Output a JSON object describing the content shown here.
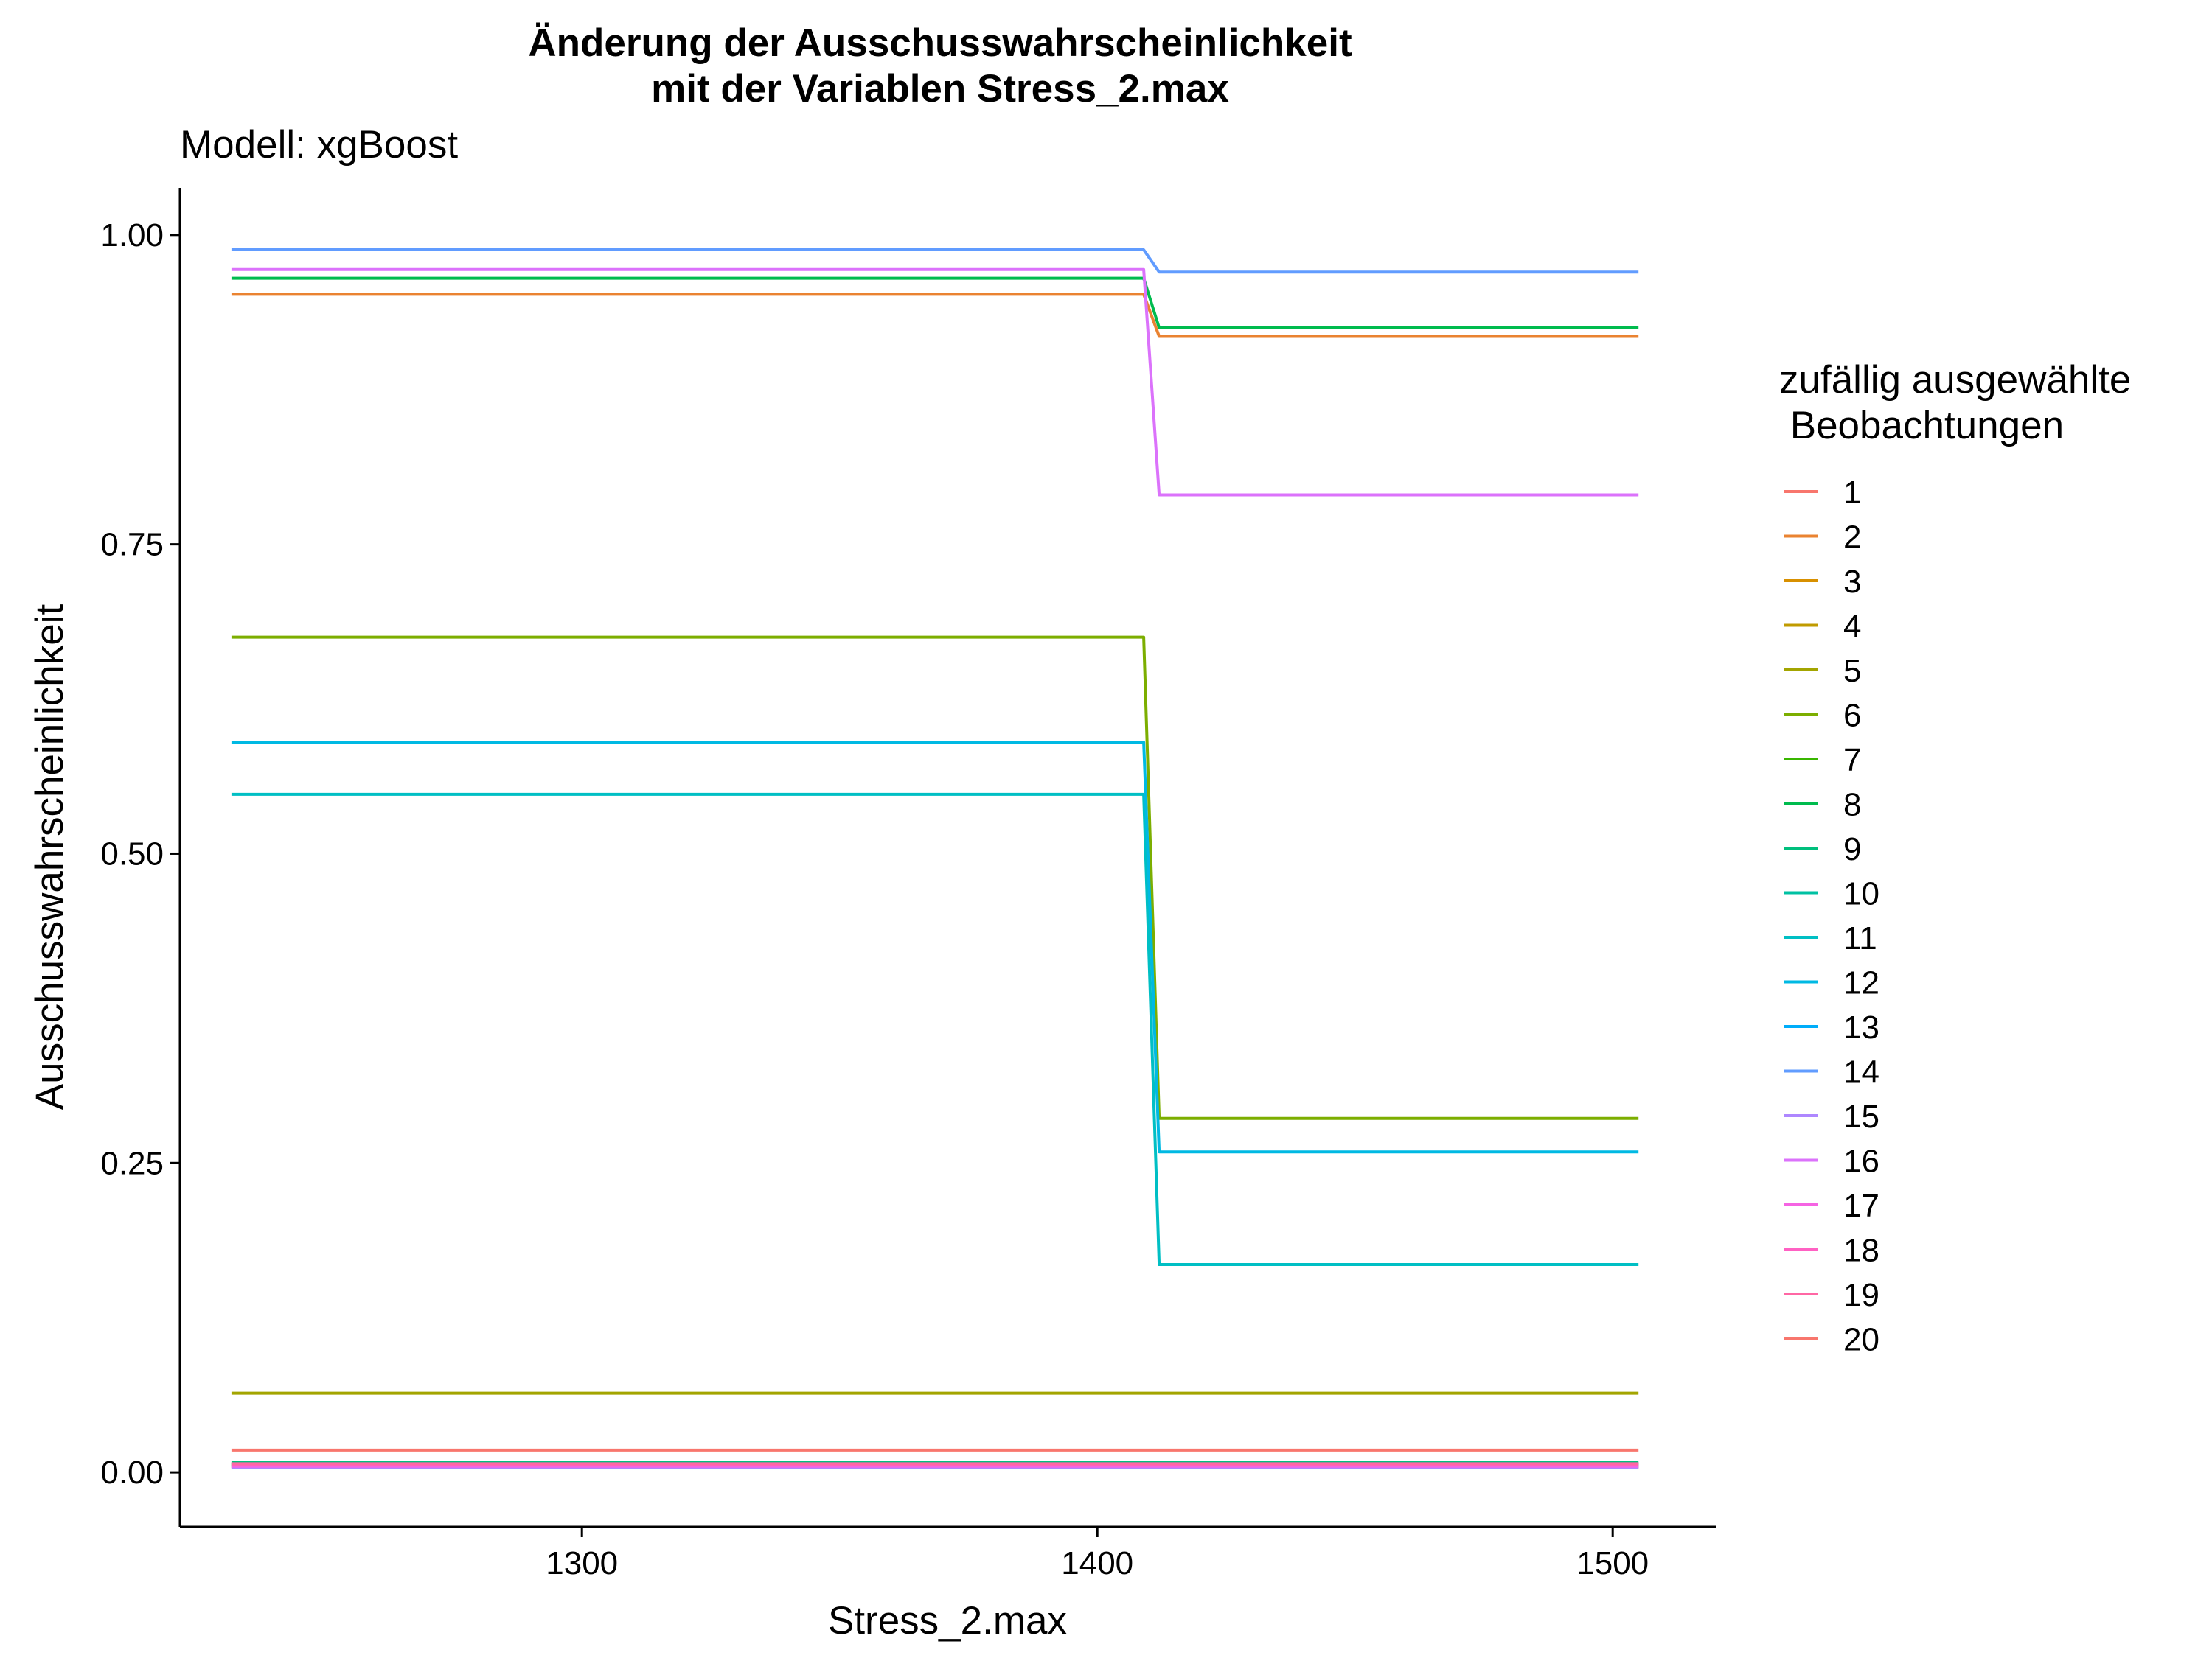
{
  "chart_data": {
    "type": "line",
    "title_line1": "Änderung der Ausschusswahrscheinlichkeit",
    "title_line2": "mit der Variablen Stress_2.max",
    "subtitle": "Modell: xgBoost",
    "xlabel": "Stress_2.max",
    "ylabel": "Ausschusswahrscheinlichkeit",
    "xlim": [
      1222,
      1520
    ],
    "ylim": [
      -0.044,
      1.038
    ],
    "x_ticks": [
      1300,
      1400,
      1500
    ],
    "y_ticks": [
      0.0,
      0.25,
      0.5,
      0.75,
      1.0
    ],
    "y_tick_labels": [
      "0.00",
      "0.25",
      "0.50",
      "0.75",
      "1.00"
    ],
    "x": [
      1232,
      1409,
      1412,
      1505
    ],
    "grid": false,
    "legend_title_line1": "zufällig ausgewählte",
    "legend_title_line2": " Beobachtungen",
    "legend_position": "right",
    "series": [
      {
        "name": "1",
        "color": "#F8766D",
        "values": [
          0.004,
          0.004,
          0.004,
          0.004
        ]
      },
      {
        "name": "2",
        "color": "#EA8331",
        "values": [
          0.952,
          0.952,
          0.918,
          0.918
        ]
      },
      {
        "name": "3",
        "color": "#D89000",
        "values": [
          0.006,
          0.006,
          0.006,
          0.006
        ]
      },
      {
        "name": "4",
        "color": "#C09B00",
        "values": [
          0.005,
          0.005,
          0.005,
          0.005
        ]
      },
      {
        "name": "5",
        "color": "#A3A500",
        "values": [
          0.064,
          0.064,
          0.064,
          0.064
        ]
      },
      {
        "name": "6",
        "color": "#7CAE00",
        "values": [
          0.675,
          0.675,
          0.286,
          0.286
        ]
      },
      {
        "name": "7",
        "color": "#39B600",
        "values": [
          0.007,
          0.007,
          0.007,
          0.007
        ]
      },
      {
        "name": "8",
        "color": "#00BB4E",
        "values": [
          0.965,
          0.965,
          0.925,
          0.925
        ]
      },
      {
        "name": "9",
        "color": "#00BF7D",
        "values": [
          0.008,
          0.008,
          0.008,
          0.008
        ]
      },
      {
        "name": "10",
        "color": "#00C1A3",
        "values": [
          0.006,
          0.006,
          0.006,
          0.006
        ]
      },
      {
        "name": "11",
        "color": "#00BFC4",
        "values": [
          0.548,
          0.548,
          0.168,
          0.168
        ]
      },
      {
        "name": "12",
        "color": "#00B9E3",
        "values": [
          0.59,
          0.59,
          0.259,
          0.259
        ]
      },
      {
        "name": "13",
        "color": "#00ADFA",
        "values": [
          0.005,
          0.005,
          0.005,
          0.005
        ]
      },
      {
        "name": "14",
        "color": "#619CFF",
        "values": [
          0.988,
          0.988,
          0.97,
          0.97
        ]
      },
      {
        "name": "15",
        "color": "#AE87FF",
        "values": [
          0.004,
          0.004,
          0.004,
          0.004
        ]
      },
      {
        "name": "16",
        "color": "#DB72FB",
        "values": [
          0.972,
          0.972,
          0.79,
          0.79
        ]
      },
      {
        "name": "17",
        "color": "#F564E3",
        "values": [
          0.005,
          0.005,
          0.005,
          0.005
        ]
      },
      {
        "name": "18",
        "color": "#FF61C3",
        "values": [
          0.006,
          0.006,
          0.006,
          0.006
        ]
      },
      {
        "name": "19",
        "color": "#FF67A4",
        "values": [
          0.007,
          0.007,
          0.007,
          0.007
        ]
      },
      {
        "name": "20",
        "color": "#F8766D",
        "values": [
          0.018,
          0.018,
          0.018,
          0.018
        ]
      }
    ]
  }
}
